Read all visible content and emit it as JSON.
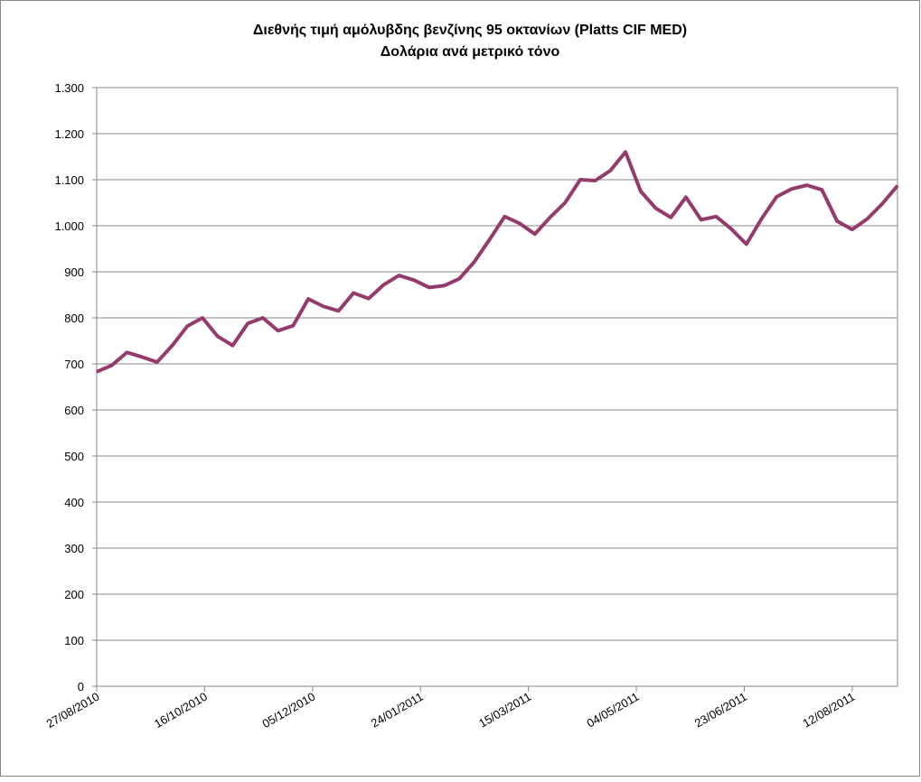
{
  "chart_data": {
    "type": "line",
    "title": "Διεθνής τιμή αμόλυβδης βενζίνης 95 οκτανίων (Platts CIF MED)",
    "subtitle": "Δολάρια ανά μετρικό τόνο",
    "x": [
      "27/08/2010",
      "03/09/2010",
      "10/09/2010",
      "17/09/2010",
      "24/09/2010",
      "01/10/2010",
      "08/10/2010",
      "15/10/2010",
      "22/10/2010",
      "29/10/2010",
      "05/11/2010",
      "12/11/2010",
      "19/11/2010",
      "26/11/2010",
      "03/12/2010",
      "10/12/2010",
      "17/12/2010",
      "24/12/2010",
      "31/12/2010",
      "07/01/2011",
      "14/01/2011",
      "21/01/2011",
      "28/01/2011",
      "04/02/2011",
      "11/02/2011",
      "18/02/2011",
      "25/02/2011",
      "04/03/2011",
      "11/03/2011",
      "18/03/2011",
      "25/03/2011",
      "01/04/2011",
      "08/04/2011",
      "15/04/2011",
      "22/04/2011",
      "29/04/2011",
      "06/05/2011",
      "13/05/2011",
      "20/05/2011",
      "27/05/2011",
      "03/06/2011",
      "10/06/2011",
      "17/06/2011",
      "24/06/2011",
      "01/07/2011",
      "08/07/2011",
      "15/07/2011",
      "22/07/2011",
      "29/07/2011",
      "05/08/2011",
      "12/08/2011",
      "19/08/2011",
      "26/08/2011",
      "02/09/2011"
    ],
    "series": [
      {
        "color": "#953b6c",
        "values": [
          683,
          697,
          725,
          715,
          704,
          740,
          782,
          800,
          760,
          740,
          788,
          800,
          772,
          783,
          841,
          825,
          815,
          854,
          842,
          872,
          892,
          882,
          866,
          870,
          885,
          922,
          970,
          1020,
          1005,
          982,
          1018,
          1050,
          1100,
          1098,
          1120,
          1160,
          1075,
          1038,
          1018,
          1062,
          1013,
          1020,
          993,
          960,
          1015,
          1063,
          1080,
          1088,
          1078,
          1010,
          992,
          1015,
          1048,
          1087
        ]
      }
    ],
    "xlim": [
      "27/08/2010",
      "02/09/2011"
    ],
    "xticks": [
      "27/08/2010",
      "16/10/2010",
      "05/12/2010",
      "24/01/2011",
      "15/03/2011",
      "04/05/2011",
      "23/06/2011",
      "12/08/2011"
    ],
    "ylim": [
      0,
      1300
    ],
    "yticks": [
      0,
      100,
      200,
      300,
      400,
      500,
      600,
      700,
      800,
      900,
      {
        "value": 1000,
        "label": "1.000"
      },
      {
        "value": 1100,
        "label": "1.100"
      },
      {
        "value": 1200,
        "label": "1.200"
      },
      {
        "value": 1300,
        "label": "1.300"
      }
    ],
    "grid": true
  }
}
